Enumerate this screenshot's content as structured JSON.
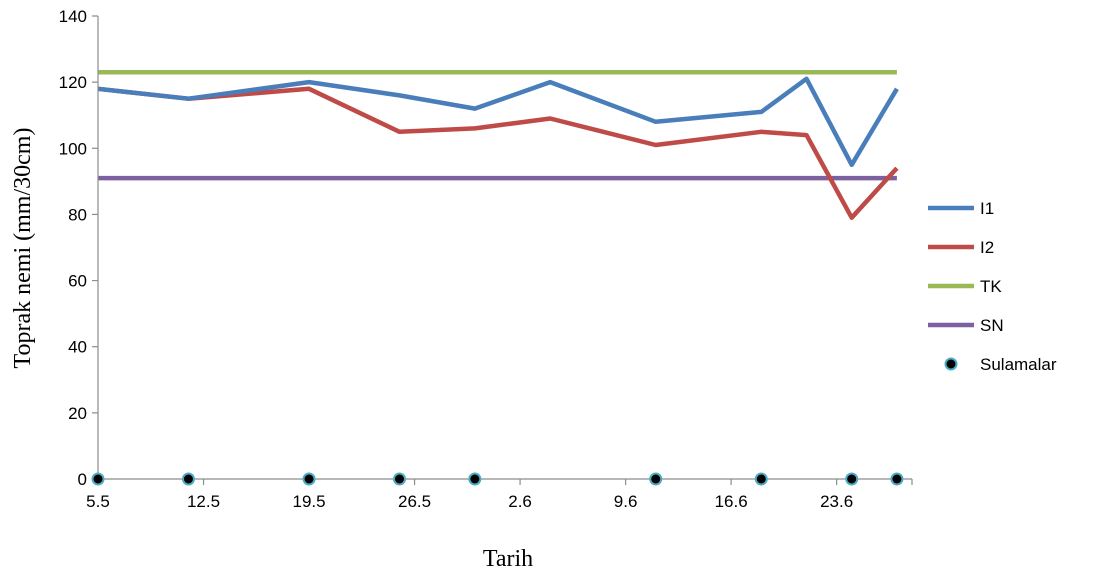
{
  "chart_data": {
    "type": "line",
    "xlabel": "Tarih",
    "ylabel": "Toprak nemi (mm/30cm)",
    "title": "",
    "ylim": [
      0,
      140
    ],
    "yticks": [
      0,
      20,
      40,
      60,
      80,
      100,
      120,
      140
    ],
    "xlim": [
      "2011-05-05",
      "2011-06-28"
    ],
    "xticks": [
      {
        "date": "2011-05-05",
        "label": "5.5"
      },
      {
        "date": "2011-05-12",
        "label": "12.5"
      },
      {
        "date": "2011-05-19",
        "label": "19.5"
      },
      {
        "date": "2011-05-26",
        "label": "26.5"
      },
      {
        "date": "2011-06-02",
        "label": "2.6"
      },
      {
        "date": "2011-06-09",
        "label": "9.6"
      },
      {
        "date": "2011-06-16",
        "label": "16.6"
      },
      {
        "date": "2011-06-23",
        "label": "23.6"
      }
    ],
    "grid": false,
    "legend_position": "right",
    "series": [
      {
        "name": "I1",
        "color": "#4a7ebb",
        "kind": "line",
        "points": [
          {
            "x": "2011-05-05",
            "y": 118
          },
          {
            "x": "2011-05-11",
            "y": 115
          },
          {
            "x": "2011-05-19",
            "y": 120
          },
          {
            "x": "2011-05-25",
            "y": 116
          },
          {
            "x": "2011-05-30",
            "y": 112
          },
          {
            "x": "2011-06-04",
            "y": 120
          },
          {
            "x": "2011-06-11",
            "y": 108
          },
          {
            "x": "2011-06-18",
            "y": 111
          },
          {
            "x": "2011-06-21",
            "y": 121
          },
          {
            "x": "2011-06-24",
            "y": 95
          },
          {
            "x": "2011-06-27",
            "y": 118
          }
        ]
      },
      {
        "name": "I2",
        "color": "#be4b48",
        "kind": "line",
        "points": [
          {
            "x": "2011-05-05",
            "y": 118
          },
          {
            "x": "2011-05-11",
            "y": 115
          },
          {
            "x": "2011-05-19",
            "y": 118
          },
          {
            "x": "2011-05-25",
            "y": 105
          },
          {
            "x": "2011-05-30",
            "y": 106
          },
          {
            "x": "2011-06-04",
            "y": 109
          },
          {
            "x": "2011-06-11",
            "y": 101
          },
          {
            "x": "2011-06-18",
            "y": 105
          },
          {
            "x": "2011-06-21",
            "y": 104
          },
          {
            "x": "2011-06-24",
            "y": 79
          },
          {
            "x": "2011-06-27",
            "y": 94
          }
        ]
      },
      {
        "name": "TK",
        "color": "#98b954",
        "kind": "line",
        "points": [
          {
            "x": "2011-05-05",
            "y": 123
          },
          {
            "x": "2011-06-27",
            "y": 123
          }
        ]
      },
      {
        "name": "SN",
        "color": "#7d60a0",
        "kind": "line",
        "points": [
          {
            "x": "2011-05-05",
            "y": 91
          },
          {
            "x": "2011-06-27",
            "y": 91
          }
        ]
      },
      {
        "name": "Sulamalar",
        "color": "#000000",
        "edge_color": "#4bacc6",
        "kind": "marker",
        "points": [
          {
            "x": "2011-05-05",
            "y": 0
          },
          {
            "x": "2011-05-11",
            "y": 0
          },
          {
            "x": "2011-05-19",
            "y": 0
          },
          {
            "x": "2011-05-25",
            "y": 0
          },
          {
            "x": "2011-05-30",
            "y": 0
          },
          {
            "x": "2011-06-11",
            "y": 0
          },
          {
            "x": "2011-06-18",
            "y": 0
          },
          {
            "x": "2011-06-24",
            "y": 0
          },
          {
            "x": "2011-06-27",
            "y": 0
          }
        ]
      }
    ]
  }
}
